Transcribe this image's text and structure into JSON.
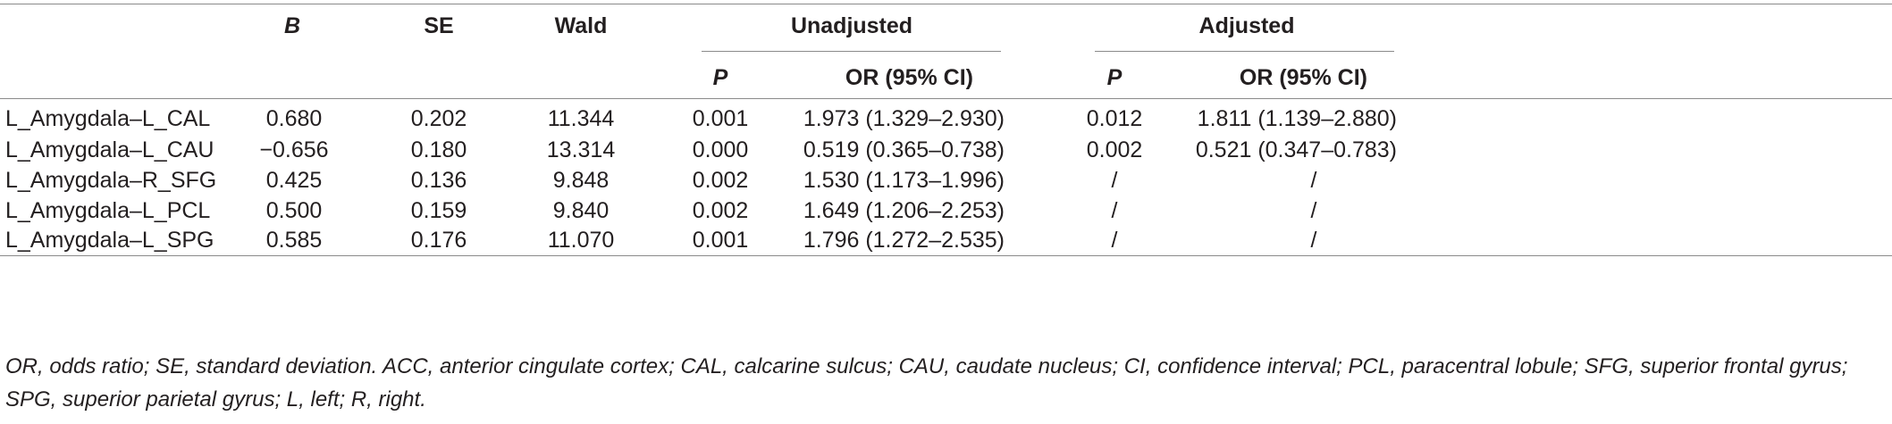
{
  "table": {
    "headers": {
      "b": "B",
      "se": "SE",
      "wald": "Wald",
      "unadjusted": "Unadjusted",
      "adjusted": "Adjusted",
      "unadj_p": "P",
      "unadj_or": "OR (95% CI)",
      "adj_p": "P",
      "adj_or": "OR (95% CI)"
    },
    "rows": [
      {
        "label": "L_Amygdala–L_CAL",
        "b": "0.680",
        "se": "0.202",
        "wald": "11.344",
        "unadj_p": "0.001",
        "unadj_or": "1.973 (1.329–2.930)",
        "adj_p": "0.012",
        "adj_or": "1.811 (1.139–2.880)"
      },
      {
        "label": "L_Amygdala–L_CAU",
        "b": "−0.656",
        "se": "0.180",
        "wald": "13.314",
        "unadj_p": "0.000",
        "unadj_or": "0.519 (0.365–0.738)",
        "adj_p": "0.002",
        "adj_or": "0.521 (0.347–0.783)"
      },
      {
        "label": "L_Amygdala–R_SFG",
        "b": "0.425",
        "se": "0.136",
        "wald": "9.848",
        "unadj_p": "0.002",
        "unadj_or": "1.530 (1.173–1.996)",
        "adj_p": "/",
        "adj_or": "/"
      },
      {
        "label": "L_Amygdala–L_PCL",
        "b": "0.500",
        "se": "0.159",
        "wald": "9.840",
        "unadj_p": "0.002",
        "unadj_or": "1.649 (1.206–2.253)",
        "adj_p": "/",
        "adj_or": "/"
      },
      {
        "label": "L_Amygdala–L_SPG",
        "b": "0.585",
        "se": "0.176",
        "wald": "11.070",
        "unadj_p": "0.001",
        "unadj_or": "1.796 (1.272–2.535)",
        "adj_p": "/",
        "adj_or": "/"
      }
    ],
    "footnote": "OR, odds ratio; SE, standard deviation. ACC, anterior cingulate cortex; CAL, calcarine sulcus; CAU, caudate nucleus; CI, confidence interval; PCL, paracentral lobule; SFG, superior frontal gyrus; SPG, superior parietal gyrus; L, left; R, right."
  }
}
